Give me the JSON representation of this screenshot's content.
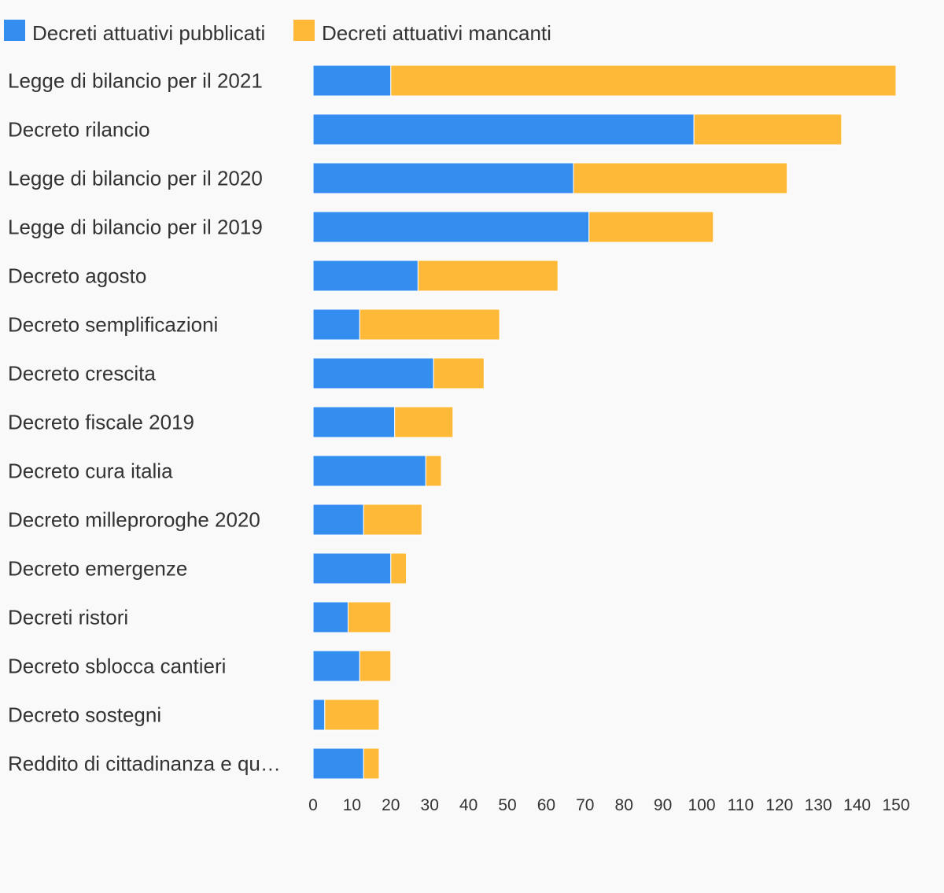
{
  "chart_data": {
    "type": "bar",
    "orientation": "horizontal",
    "stacked": true,
    "title": "",
    "xlabel": "",
    "ylabel": "",
    "xlim": [
      0,
      150
    ],
    "xticks": [
      0,
      10,
      20,
      30,
      40,
      50,
      60,
      70,
      80,
      90,
      100,
      110,
      120,
      130,
      140,
      150
    ],
    "grid": false,
    "legend_position": "top-left",
    "categories": [
      "Legge di bilancio per il 2021",
      "Decreto rilancio",
      "Legge di bilancio per il 2020",
      "Legge di bilancio per il 2019",
      "Decreto agosto",
      "Decreto semplificazioni",
      "Decreto crescita",
      "Decreto fiscale 2019",
      "Decreto cura italia",
      "Decreto milleproroghe 2020",
      "Decreto emergenze",
      "Decreti ristori",
      "Decreto sblocca cantieri",
      "Decreto sostegni",
      "Reddito di cittadinanza e qu…"
    ],
    "series": [
      {
        "name": "Decreti attuativi pubblicati",
        "color": "#348ef0",
        "values": [
          20,
          98,
          67,
          71,
          27,
          12,
          31,
          21,
          29,
          13,
          20,
          9,
          12,
          3,
          13
        ]
      },
      {
        "name": "Decreti attuativi mancanti",
        "color": "#ffb938",
        "values": [
          130,
          38,
          55,
          32,
          36,
          36,
          13,
          15,
          4,
          15,
          4,
          11,
          8,
          14,
          4
        ]
      }
    ]
  }
}
